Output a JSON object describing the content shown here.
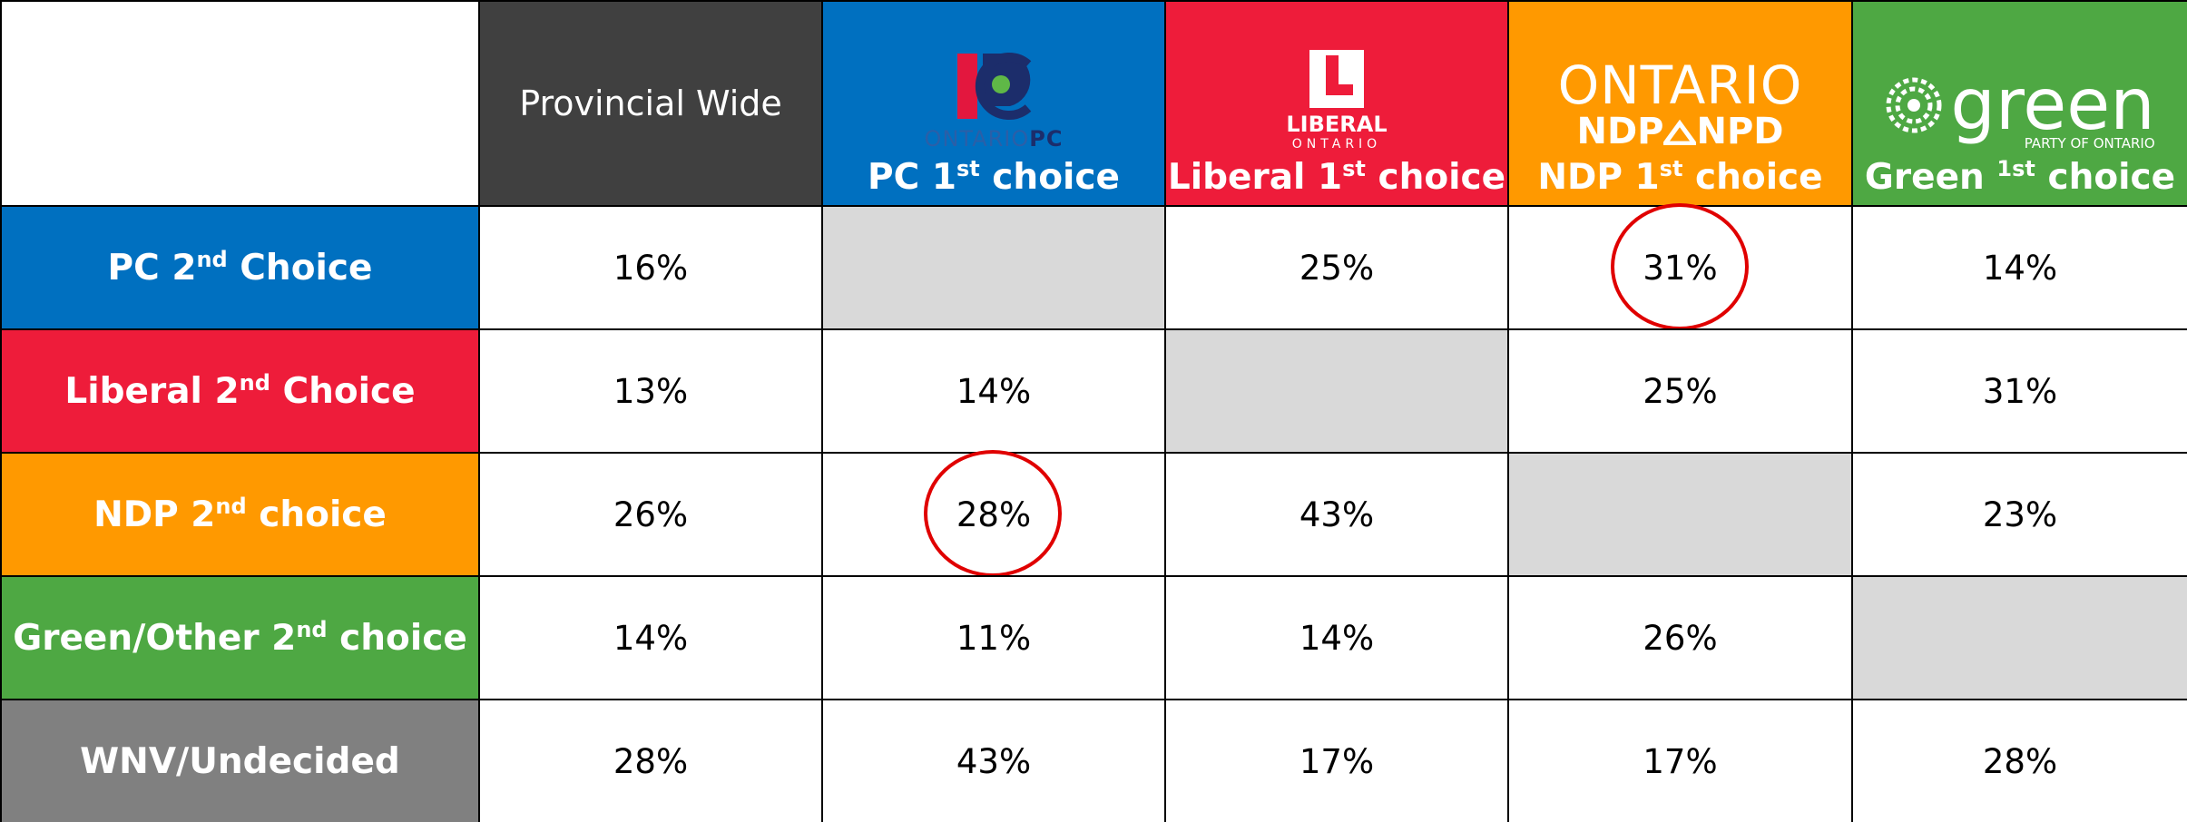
{
  "header": {
    "columns": [
      {
        "label": {
          "pre": "Provincial Wide"
        },
        "color": "#404040"
      },
      {
        "logo": {
          "pre": "ONTARIO",
          "bold": "PC"
        },
        "label": {
          "pre": "PC 1",
          "sup": "st",
          "post": " choice"
        },
        "color": "#0070c0"
      },
      {
        "logo": {
          "name": "LIBERAL",
          "sub": "ONTARIO"
        },
        "label": {
          "pre": "Liberal 1",
          "sup": "st",
          "post": " choice"
        },
        "color": "#ee1c3a"
      },
      {
        "logo": {
          "top": "ONTARIO",
          "left": "NDP",
          "right": "NPD"
        },
        "label": {
          "pre": "NDP 1",
          "sup": "st",
          "post": " choice"
        },
        "color": "#ff9900"
      },
      {
        "logo": {
          "name": "green",
          "sub": "PARTY OF ONTARIO"
        },
        "label": {
          "pre": "Green ",
          "sup": "1st",
          "post": " choice"
        },
        "color": "#4ea843"
      }
    ]
  },
  "rows": [
    {
      "label": {
        "pre": "PC 2",
        "sup": "nd",
        "post": " Choice"
      },
      "color": "#0070c0",
      "cells": [
        "16%",
        null,
        "25%",
        "31%",
        "14%"
      ],
      "circled": [
        3
      ]
    },
    {
      "label": {
        "pre": "Liberal 2",
        "sup": "nd",
        "post": " Choice"
      },
      "color": "#ee1c3a",
      "cells": [
        "13%",
        "14%",
        null,
        "25%",
        "31%"
      ]
    },
    {
      "label": {
        "pre": "NDP 2",
        "sup": "nd",
        "post": " choice"
      },
      "color": "#ff9900",
      "cells": [
        "26%",
        "28%",
        "43%",
        null,
        "23%"
      ],
      "circled": [
        1
      ]
    },
    {
      "label": {
        "pre": "Green/Other 2",
        "sup": "nd",
        "post": " choice"
      },
      "color": "#4ea843",
      "cells": [
        "14%",
        "11%",
        "14%",
        "26%",
        null
      ]
    },
    {
      "label": {
        "pre": "WNV/Undecided"
      },
      "color": "#808080",
      "cells": [
        "28%",
        "43%",
        "17%",
        "17%",
        "28%"
      ]
    }
  ]
}
